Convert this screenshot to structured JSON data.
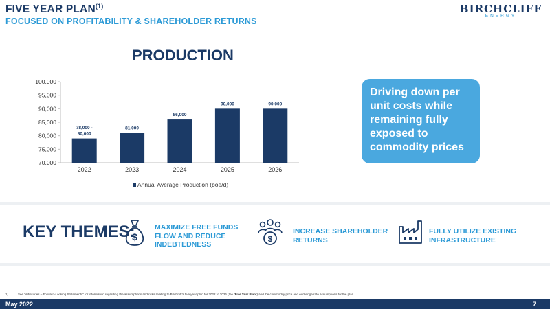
{
  "header": {
    "title": "FIVE YEAR PLAN",
    "title_sup": "(1)",
    "subtitle": "FOCUSED ON PROFITABILITY & SHAREHOLDER RETURNS"
  },
  "logo": {
    "name": "BIRCHCLIFF",
    "sub": "ENERGY"
  },
  "colors": {
    "navy": "#1b3a66",
    "accent": "#2c9ad6",
    "callout": "#4aa8df",
    "bar": "#1b3a66"
  },
  "chart_data": {
    "type": "bar",
    "title": "PRODUCTION",
    "categories": [
      "2022",
      "2023",
      "2024",
      "2025",
      "2026"
    ],
    "values": [
      79000,
      81000,
      86000,
      90000,
      90000
    ],
    "data_labels": [
      [
        "78,000 -",
        "80,000"
      ],
      [
        "81,000"
      ],
      [
        "86,000"
      ],
      [
        "90,000"
      ],
      [
        "90,000"
      ]
    ],
    "ylim": [
      70000,
      100000
    ],
    "yticks": [
      70000,
      75000,
      80000,
      85000,
      90000,
      95000,
      100000
    ],
    "ytick_labels": [
      "70,000",
      "75,000",
      "80,000",
      "85,000",
      "90,000",
      "95,000",
      "100,000"
    ],
    "legend": {
      "label": "Annual Average Production (boe/d)",
      "position": "bottom"
    },
    "grid": false
  },
  "callout": {
    "lines": [
      "Driving down per",
      "unit costs while",
      "remaining fully",
      "exposed to",
      "commodity prices"
    ]
  },
  "key_themes": {
    "title": "KEY THEMES:",
    "items": [
      {
        "icon": "money-bag-icon",
        "lines": [
          "MAXIMIZE FREE FUNDS",
          "FLOW AND REDUCE",
          "INDEBTEDNESS"
        ]
      },
      {
        "icon": "people-dollar-icon",
        "lines": [
          "INCREASE SHAREHOLDER",
          "RETURNS"
        ]
      },
      {
        "icon": "factory-icon",
        "lines": [
          "FULLY UTILIZE EXISTING",
          "INFRASTRUCTURE"
        ]
      }
    ]
  },
  "footnote": {
    "num": "1)",
    "pre": "See “Advisories – Forward-Looking Statements” for information regarding the assumptions and risks relating to Birchcliff’s five year plan for 2022 to 2026 (the “",
    "bold": "Five Year Plan",
    "post": "”) and the commodity price and exchange rate assumptions for the plan."
  },
  "footer": {
    "date": "May 2022",
    "page": "7"
  }
}
